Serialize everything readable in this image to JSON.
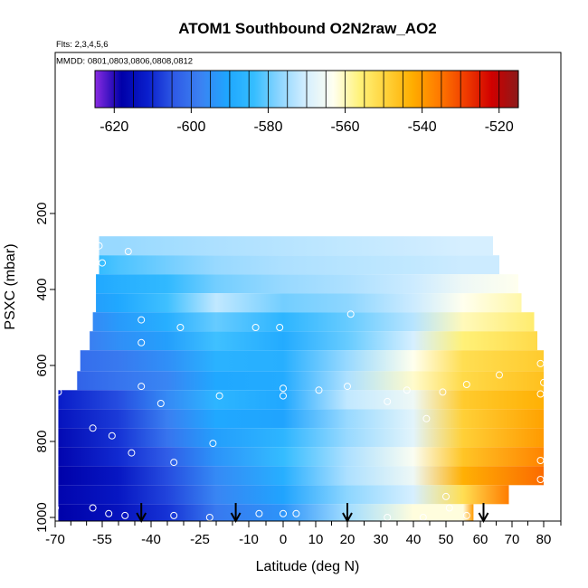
{
  "chart_data": {
    "type": "heatmap",
    "title": "ATOM1 Southbound O2N2raw_AO2",
    "subtitle_flights": "Flts: 2,3,4,5,6",
    "subtitle_dates": "MMDD: 0801,0803,0806,0808,0812",
    "xlabel": "Latitude (deg N)",
    "ylabel": "PSXC (mbar)",
    "xlim": [
      -70,
      85
    ],
    "ylim": [
      1000,
      0
    ],
    "x_major_ticks": [
      -70,
      -55,
      -40,
      -25,
      -10,
      0,
      10,
      20,
      30,
      40,
      50,
      60,
      70,
      80
    ],
    "x_tick_labels": [
      "-70",
      "-55",
      "-40",
      "-25",
      "-10",
      "0",
      "10",
      "20",
      "30",
      "40",
      "50",
      "60",
      "70",
      "80"
    ],
    "y_ticks": [
      200,
      400,
      600,
      800,
      1000
    ],
    "y_tick_labels": [
      "200",
      "400",
      "600",
      "800",
      "1000"
    ],
    "colorbar": {
      "min": -625,
      "max": -515,
      "ticks": [
        -620,
        -600,
        -580,
        -560,
        -540,
        -520
      ],
      "tick_labels": [
        "-620",
        "-600",
        "-580",
        "-560",
        "-540",
        "-520"
      ],
      "colors": [
        "#8a2be2",
        "#0000a8",
        "#0a1fcc",
        "#2f5be6",
        "#3b82f2",
        "#1ea6ff",
        "#35bdff",
        "#8fd6ff",
        "#d6efff",
        "#fffff0",
        "#fff27a",
        "#ffd23a",
        "#ffad00",
        "#ff7a00",
        "#f03c00",
        "#d00000",
        "#8b1a1a"
      ]
    },
    "grid": false,
    "profile_bands": [
      {
        "p": [
          260,
          310
        ],
        "lat": [
          -56,
          64
        ],
        "values": [
          -576,
          -576,
          -575,
          -574,
          -573,
          -572,
          -571,
          -570,
          -570
        ]
      },
      {
        "p": [
          310,
          360
        ],
        "lat": [
          -56,
          66
        ],
        "values": [
          -584,
          -582,
          -579,
          -576,
          -574,
          -573,
          -572,
          -571,
          -571
        ]
      },
      {
        "p": [
          360,
          410
        ],
        "lat": [
          -57,
          72
        ],
        "values": [
          -590,
          -588,
          -585,
          -579,
          -576,
          -574,
          -571,
          -566,
          -563
        ]
      },
      {
        "p": [
          410,
          460
        ],
        "lat": [
          -57,
          73
        ],
        "values": [
          -592,
          -590,
          -583,
          -572,
          -579,
          -577,
          -571,
          -563,
          -559
        ]
      },
      {
        "p": [
          460,
          510
        ],
        "lat": [
          -58,
          77
        ],
        "values": [
          -596,
          -593,
          -588,
          -580,
          -586,
          -580,
          -573,
          -560,
          -555
        ]
      },
      {
        "p": [
          510,
          560
        ],
        "lat": [
          -59,
          78
        ],
        "values": [
          -598,
          -595,
          -592,
          -583,
          -589,
          -580,
          -570,
          -556,
          -551
        ]
      },
      {
        "p": [
          560,
          615
        ],
        "lat": [
          -62,
          80
        ],
        "values": [
          -601,
          -599,
          -595,
          -587,
          -588,
          -576,
          -563,
          -552,
          -548
        ]
      },
      {
        "p": [
          615,
          665
        ],
        "lat": [
          -63,
          80
        ],
        "values": [
          -603,
          -600,
          -597,
          -590,
          -589,
          -574,
          -561,
          -551,
          -546
        ]
      },
      {
        "p": [
          665,
          715
        ],
        "lat": [
          -69,
          80
        ],
        "values": [
          -612,
          -606,
          -596,
          -586,
          -590,
          -572,
          -566,
          -548,
          -543
        ]
      },
      {
        "p": [
          715,
          765
        ],
        "lat": [
          -69,
          80
        ],
        "values": [
          -614,
          -608,
          -598,
          -590,
          -591,
          -576,
          -568,
          -549,
          -541
        ]
      },
      {
        "p": [
          765,
          815
        ],
        "lat": [
          -69,
          80
        ],
        "values": [
          -616,
          -609,
          -600,
          -592,
          -586,
          -576,
          -568,
          -549,
          -540
        ]
      },
      {
        "p": [
          815,
          865
        ],
        "lat": [
          -69,
          80
        ],
        "values": [
          -617,
          -610,
          -604,
          -594,
          -584,
          -574,
          -564,
          -547,
          -537
        ]
      },
      {
        "p": [
          865,
          915
        ],
        "lat": [
          -69,
          80
        ],
        "values": [
          -618,
          -613,
          -606,
          -596,
          -588,
          -574,
          -566,
          -543,
          -534
        ]
      },
      {
        "p": [
          915,
          965
        ],
        "lat": [
          -69,
          69
        ],
        "values": [
          -617,
          -613,
          -607,
          -597,
          -591,
          -577,
          -570,
          -552,
          -536
        ]
      },
      {
        "p": [
          965,
          1010
        ],
        "lat": [
          -69,
          58
        ],
        "values": [
          -618,
          -614,
          -609,
          -599,
          -594,
          -575,
          -562,
          -562,
          -540
        ]
      }
    ],
    "band_value_lats": [
      -69,
      -50,
      -35,
      -20,
      0,
      20,
      40,
      55,
      80
    ],
    "sample_points": [
      {
        "lat": -56,
        "p": 285
      },
      {
        "lat": -47,
        "p": 300
      },
      {
        "lat": -55,
        "p": 330
      },
      {
        "lat": -43,
        "p": 480
      },
      {
        "lat": -43,
        "p": 540
      },
      {
        "lat": -31,
        "p": 500
      },
      {
        "lat": -8,
        "p": 500
      },
      {
        "lat": -1,
        "p": 500
      },
      {
        "lat": 21,
        "p": 465
      },
      {
        "lat": 79,
        "p": 595
      },
      {
        "lat": 66,
        "p": 625
      },
      {
        "lat": -69,
        "p": 670
      },
      {
        "lat": -43,
        "p": 655
      },
      {
        "lat": -37,
        "p": 700
      },
      {
        "lat": -19,
        "p": 680
      },
      {
        "lat": 0,
        "p": 660
      },
      {
        "lat": 0,
        "p": 680
      },
      {
        "lat": 11,
        "p": 665
      },
      {
        "lat": 20,
        "p": 655
      },
      {
        "lat": 32,
        "p": 695
      },
      {
        "lat": 38,
        "p": 665
      },
      {
        "lat": 49,
        "p": 670
      },
      {
        "lat": 56,
        "p": 650
      },
      {
        "lat": 80,
        "p": 645
      },
      {
        "lat": 79,
        "p": 675
      },
      {
        "lat": -58,
        "p": 765
      },
      {
        "lat": -52,
        "p": 785
      },
      {
        "lat": 44,
        "p": 740
      },
      {
        "lat": -21,
        "p": 805
      },
      {
        "lat": -46,
        "p": 830
      },
      {
        "lat": -33,
        "p": 855
      },
      {
        "lat": 79,
        "p": 850
      },
      {
        "lat": 79,
        "p": 900
      },
      {
        "lat": 50,
        "p": 945
      },
      {
        "lat": -70,
        "p": 975
      },
      {
        "lat": -58,
        "p": 975
      },
      {
        "lat": -53,
        "p": 990
      },
      {
        "lat": -48,
        "p": 995
      },
      {
        "lat": -33,
        "p": 995
      },
      {
        "lat": -22,
        "p": 1000
      },
      {
        "lat": -7,
        "p": 990
      },
      {
        "lat": 0,
        "p": 990
      },
      {
        "lat": 4,
        "p": 990
      },
      {
        "lat": 32,
        "p": 1000
      },
      {
        "lat": 43,
        "p": 1000
      },
      {
        "lat": 51,
        "p": 975
      },
      {
        "lat": 56,
        "p": 995
      }
    ],
    "arrow_lats": [
      -43,
      -14,
      20,
      61
    ]
  }
}
